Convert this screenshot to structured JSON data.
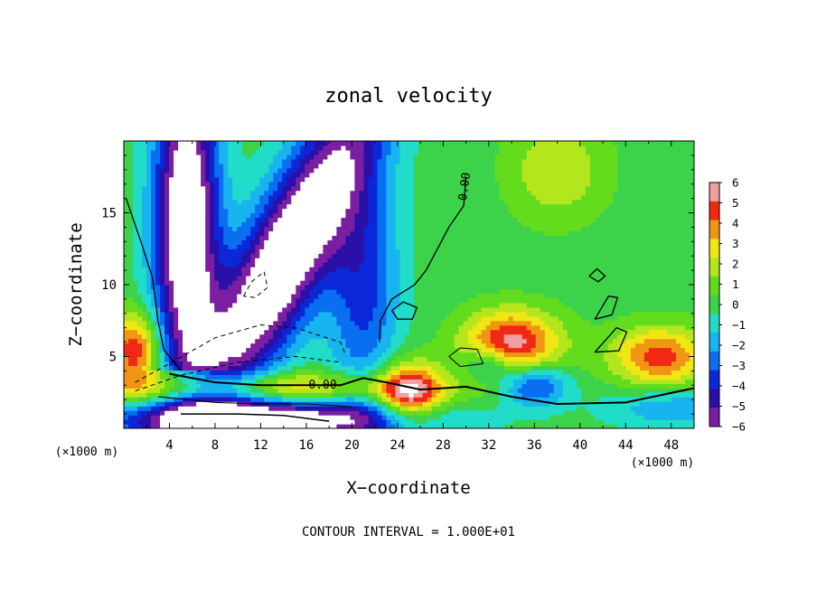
{
  "chart_data": {
    "type": "heatmap",
    "title": "zonal velocity",
    "xlabel": "X−coordinate",
    "ylabel": "Z−coordinate",
    "x_unit": "(×1000 m)",
    "y_unit": "(×1000 m)",
    "xlim": [
      0,
      50
    ],
    "ylim": [
      0,
      20
    ],
    "x_ticks": [
      "4",
      "8",
      "12",
      "16",
      "20",
      "24",
      "28",
      "32",
      "36",
      "40",
      "44",
      "48"
    ],
    "y_ticks": [
      "5",
      "10",
      "15"
    ],
    "contour_labels": [
      "0.00",
      "0.00"
    ],
    "footer": "CONTOUR INTERVAL = 1.000E+01",
    "colorbar": {
      "labels": [
        "6",
        "5",
        "4",
        "3",
        "2",
        "1",
        "0",
        "−1",
        "−2",
        "−3",
        "−4",
        "−5",
        "−6"
      ],
      "levels": [
        -6,
        -5,
        -4,
        -3,
        -2,
        -1,
        0,
        1,
        2,
        3,
        4,
        5,
        6
      ],
      "colors": [
        "#7b1fa2",
        "#2a0fa8",
        "#0a28d8",
        "#0a6ef0",
        "#18b4f0",
        "#20dcc8",
        "#3cd24a",
        "#64dc1e",
        "#b4e61e",
        "#f0e614",
        "#f09614",
        "#f02814",
        "#f0a0a0"
      ],
      "out_of_range_color": "#ffffff"
    }
  }
}
